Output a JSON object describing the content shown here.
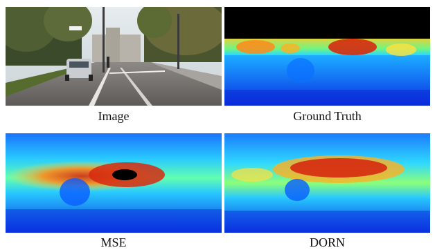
{
  "captions": {
    "image": "Image",
    "ground_truth": "Ground Truth",
    "mse": "MSE",
    "dorn": "DORN"
  }
}
